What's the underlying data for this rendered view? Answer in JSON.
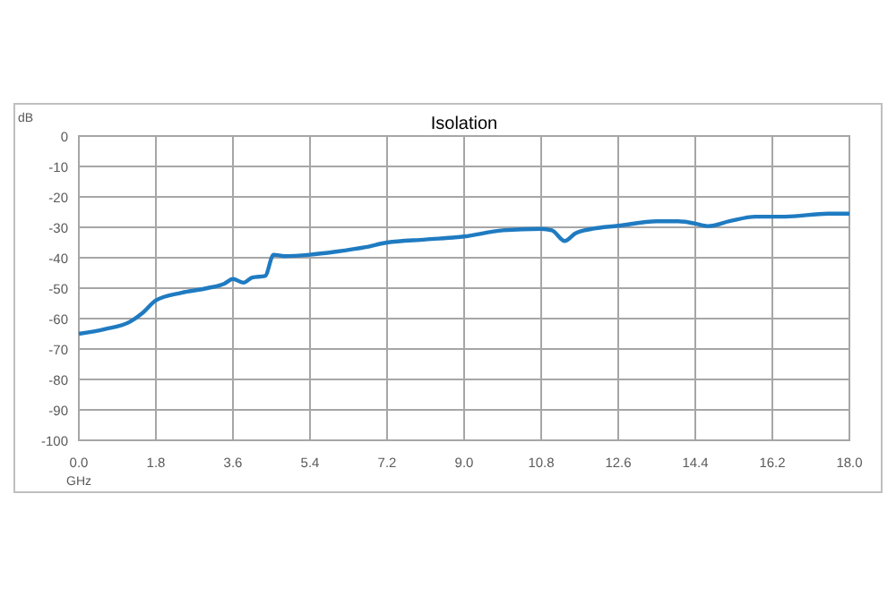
{
  "chart_data": {
    "type": "line",
    "title": "Isolation",
    "xlabel": "GHz",
    "ylabel": "dB",
    "x": [
      0,
      0.6,
      1.2,
      1.5,
      1.8,
      2.4,
      3.0,
      3.4,
      3.6,
      3.85,
      4.05,
      4.35,
      4.55,
      4.8,
      5.4,
      6.0,
      6.7,
      7.2,
      8.1,
      9.0,
      9.9,
      10.8,
      11.05,
      11.35,
      11.6,
      12.0,
      12.6,
      13.5,
      14.0,
      14.4,
      14.7,
      15.2,
      15.8,
      16.5,
      17.5,
      18.0
    ],
    "series": [
      {
        "color": "#1f7bc1",
        "values": [
          -65,
          -63.5,
          -61,
          -58,
          -54,
          -51.5,
          -50,
          -48.5,
          -47,
          -48.2,
          -46.5,
          -46,
          -39,
          -39.5,
          -39,
          -38,
          -36.5,
          -35,
          -34,
          -33,
          -31,
          -30.5,
          -31,
          -34.5,
          -32,
          -30.5,
          -29.5,
          -28,
          -28,
          -28.8,
          -29.6,
          -28,
          -26.5,
          -26.5,
          -25.5,
          -25.5
        ]
      }
    ],
    "xlim": [
      0,
      18
    ],
    "xticks": [
      {
        "value": 0,
        "label": "0.0"
      },
      {
        "value": 1.8,
        "label": "1.8"
      },
      {
        "value": 3.6,
        "label": "3.6"
      },
      {
        "value": 5.4,
        "label": "5.4"
      },
      {
        "value": 7.2,
        "label": "7.2"
      },
      {
        "value": 9,
        "label": "9.0"
      },
      {
        "value": 10.8,
        "label": "10.8"
      },
      {
        "value": 12.6,
        "label": "12.6"
      },
      {
        "value": 14.4,
        "label": "14.4"
      },
      {
        "value": 16.2,
        "label": "16.2"
      },
      {
        "value": 18,
        "label": "18.0"
      }
    ],
    "ylim": [
      -100,
      0
    ],
    "yticks": [
      -100,
      -90,
      -80,
      -70,
      -60,
      -50,
      -40,
      -30,
      -20,
      -10,
      0
    ],
    "grid": true,
    "line_style": "solid",
    "marker": "none"
  }
}
